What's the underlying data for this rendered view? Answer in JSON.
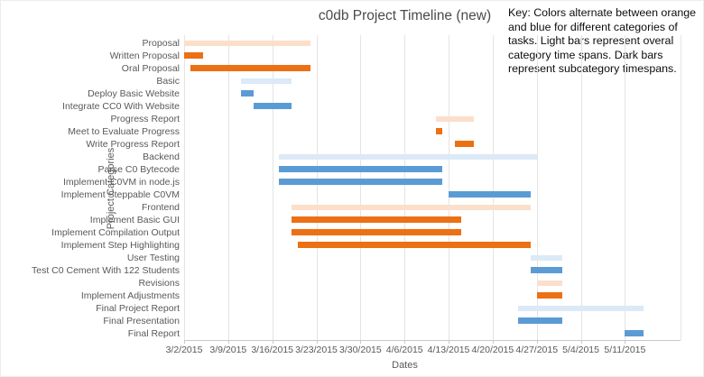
{
  "title": "c0db Project Timeline (new)",
  "key_note": {
    "lines": [
      "Key: Colors alternate between orange",
      "and blue for different categories of",
      "tasks. Light bars represent overal",
      "category time spans. Dark bars",
      "represent subcategory timespans."
    ]
  },
  "x_axis": {
    "label": "Dates",
    "ticks": [
      "3/2/2015",
      "3/9/2015",
      "3/16/2015",
      "3/23/2015",
      "3/30/2015",
      "4/6/2015",
      "4/13/2015",
      "4/20/2015",
      "4/27/2015",
      "5/4/2015",
      "5/11/2015"
    ]
  },
  "y_axis": {
    "label": "Project Categories"
  },
  "colors": {
    "orange_dark": "#EC7014",
    "orange_light": "#FBDFCB",
    "blue_dark": "#5B9BD5",
    "blue_light": "#DCE9F6",
    "gridline": "#E4E4E4",
    "axis_line": "#C8C8C8",
    "axis_text": "#595959"
  },
  "chart_data": {
    "type": "gantt-bar",
    "title": "c0db Project Timeline (new)",
    "xlabel": "Dates",
    "ylabel": "Project Categories",
    "x_start_date": "2015-03-02",
    "x_end_date": "2015-05-11",
    "tick_interval_days": 7,
    "legend_meaning": "Light bars = overall category time spans; dark bars = subcategory timespans; orange/blue alternate by category",
    "tasks": [
      {
        "label": "Proposal",
        "start": "2015-03-02",
        "end": "2015-03-22",
        "color": "orange",
        "shade": "light"
      },
      {
        "label": "Written Proposal",
        "start": "2015-03-02",
        "end": "2015-03-05",
        "color": "orange",
        "shade": "dark"
      },
      {
        "label": "Oral Proposal",
        "start": "2015-03-03",
        "end": "2015-03-22",
        "color": "orange",
        "shade": "dark"
      },
      {
        "label": "Basic",
        "start": "2015-03-11",
        "end": "2015-03-19",
        "color": "blue",
        "shade": "light"
      },
      {
        "label": "Deploy Basic Website",
        "start": "2015-03-11",
        "end": "2015-03-13",
        "color": "blue",
        "shade": "dark"
      },
      {
        "label": "Integrate CC0 With Website",
        "start": "2015-03-13",
        "end": "2015-03-19",
        "color": "blue",
        "shade": "dark"
      },
      {
        "label": "Progress Report",
        "start": "2015-04-11",
        "end": "2015-04-17",
        "color": "orange",
        "shade": "light"
      },
      {
        "label": "Meet to Evaluate Progress",
        "start": "2015-04-11",
        "end": "2015-04-12",
        "color": "orange",
        "shade": "dark"
      },
      {
        "label": "Write Progress Report",
        "start": "2015-04-14",
        "end": "2015-04-17",
        "color": "orange",
        "shade": "dark"
      },
      {
        "label": "Backend",
        "start": "2015-03-17",
        "end": "2015-04-27",
        "color": "blue",
        "shade": "light"
      },
      {
        "label": "Parse C0 Bytecode",
        "start": "2015-03-17",
        "end": "2015-04-12",
        "color": "blue",
        "shade": "dark"
      },
      {
        "label": "Implement C0VM in node.js",
        "start": "2015-03-17",
        "end": "2015-04-12",
        "color": "blue",
        "shade": "dark"
      },
      {
        "label": "Implement Steppable C0VM",
        "start": "2015-04-13",
        "end": "2015-04-26",
        "color": "blue",
        "shade": "dark"
      },
      {
        "label": "Frontend",
        "start": "2015-03-19",
        "end": "2015-04-26",
        "color": "orange",
        "shade": "light"
      },
      {
        "label": "Implement Basic GUI",
        "start": "2015-03-19",
        "end": "2015-04-15",
        "color": "orange",
        "shade": "dark"
      },
      {
        "label": "Implement Compilation Output",
        "start": "2015-03-19",
        "end": "2015-04-15",
        "color": "orange",
        "shade": "dark"
      },
      {
        "label": "Implement Step Highlighting",
        "start": "2015-03-20",
        "end": "2015-04-26",
        "color": "orange",
        "shade": "dark"
      },
      {
        "label": "User Testing",
        "start": "2015-04-26",
        "end": "2015-05-01",
        "color": "blue",
        "shade": "light"
      },
      {
        "label": "Test C0 Cement With 122 Students",
        "start": "2015-04-26",
        "end": "2015-05-01",
        "color": "blue",
        "shade": "dark"
      },
      {
        "label": "Revisions",
        "start": "2015-04-27",
        "end": "2015-05-01",
        "color": "orange",
        "shade": "light"
      },
      {
        "label": "Implement Adjustments",
        "start": "2015-04-27",
        "end": "2015-05-01",
        "color": "orange",
        "shade": "dark"
      },
      {
        "label": "Final Project Report",
        "start": "2015-04-24",
        "end": "2015-05-14",
        "color": "blue",
        "shade": "light"
      },
      {
        "label": "Final Presentation",
        "start": "2015-04-24",
        "end": "2015-05-01",
        "color": "blue",
        "shade": "dark"
      },
      {
        "label": "Final Report",
        "start": "2015-05-11",
        "end": "2015-05-14",
        "color": "blue",
        "shade": "dark"
      }
    ]
  }
}
